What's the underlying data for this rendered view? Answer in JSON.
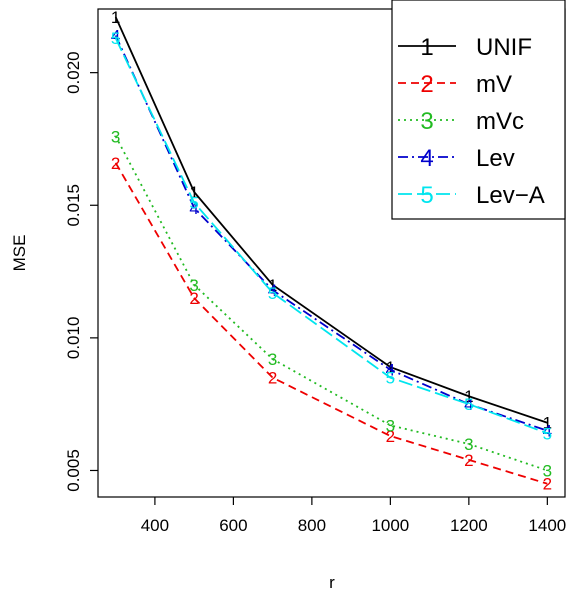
{
  "chart_data": {
    "type": "line",
    "xlabel": "r",
    "ylabel": "MSE",
    "x": [
      300,
      500,
      700,
      1000,
      1200,
      1400
    ],
    "xlim": [
      255,
      1445
    ],
    "ylim": [
      0.004,
      0.0224
    ],
    "xticks": [
      400,
      600,
      800,
      1000,
      1200,
      1400
    ],
    "yticks": [
      0.005,
      0.01,
      0.015,
      0.02
    ],
    "xtick_labels": [
      "400",
      "600",
      "800",
      "1000",
      "1200",
      "1400"
    ],
    "ytick_labels": [
      "0.005",
      "0.010",
      "0.015",
      "0.020"
    ],
    "grid": false,
    "legend_position": "top-right",
    "series": [
      {
        "name": "UNIF",
        "symbol": "1",
        "color": "#000000",
        "dash": "",
        "values": [
          0.0221,
          0.0155,
          0.012,
          0.0089,
          0.0078,
          0.0068
        ]
      },
      {
        "name": "mV",
        "symbol": "2",
        "color": "#ee0000",
        "dash": "8,5",
        "values": [
          0.0166,
          0.0115,
          0.0085,
          0.0063,
          0.0054,
          0.0045
        ]
      },
      {
        "name": "mVc",
        "symbol": "3",
        "color": "#22bb22",
        "dash": "2,4",
        "values": [
          0.0176,
          0.012,
          0.0092,
          0.0067,
          0.006,
          0.005
        ]
      },
      {
        "name": "Lev",
        "symbol": "4",
        "color": "#0000cc",
        "dash": "10,4,2,4",
        "values": [
          0.0214,
          0.0149,
          0.0118,
          0.0088,
          0.0075,
          0.0065
        ]
      },
      {
        "name": "Lev−A",
        "symbol": "5",
        "color": "#00e5ee",
        "dash": "14,5",
        "values": [
          0.0213,
          0.0151,
          0.0117,
          0.0085,
          0.0075,
          0.0064
        ]
      }
    ]
  }
}
